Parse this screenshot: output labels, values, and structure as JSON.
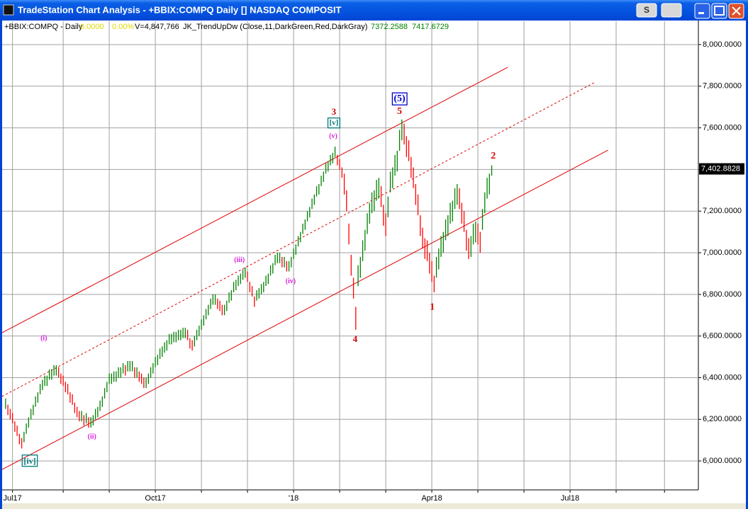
{
  "window": {
    "title": "TradeStation Chart Analysis - +BBIX:COMPQ Daily [] NASDAQ COMPOSIT",
    "button": "S"
  },
  "legend": {
    "symbol": "+BBIX:COMPQ - Daily",
    "change": "0.0000",
    "percent": "0.00%",
    "volume": "V=4,847,766",
    "indicator": "JK_TrendUpDw (Close,11,DarkGreen,Red,DarkGray)",
    "value1": "7372.2588",
    "value2": "7417.6729"
  },
  "chart_data": {
    "type": "bar",
    "high": [
      6300,
      6270,
      6250,
      6230,
      6190,
      6170,
      6130,
      6110,
      6140,
      6180,
      6210,
      6250,
      6270,
      6310,
      6330,
      6370,
      6390,
      6410,
      6410,
      6440,
      6440,
      6460,
      6460,
      6450,
      6420,
      6410,
      6380,
      6370,
      6330,
      6320,
      6280,
      6260,
      6240,
      6240,
      6220,
      6230,
      6210,
      6210,
      6220,
      6250,
      6260,
      6290,
      6310,
      6350,
      6380,
      6420,
      6420,
      6430,
      6430,
      6450,
      6450,
      6470,
      6460,
      6480,
      6480,
      6480,
      6450,
      6450,
      6430,
      6420,
      6400,
      6400,
      6420,
      6450,
      6470,
      6500,
      6510,
      6540,
      6550,
      6570,
      6580,
      6610,
      6610,
      6620,
      6620,
      6630,
      6630,
      6640,
      6640,
      6630,
      6590,
      6580,
      6600,
      6630,
      6650,
      6680,
      6700,
      6730,
      6750,
      6780,
      6800,
      6800,
      6780,
      6770,
      6750,
      6750,
      6770,
      6810,
      6820,
      6860,
      6870,
      6890,
      6900,
      6920,
      6930,
      6910,
      6860,
      6840,
      6790,
      6820,
      6830,
      6850,
      6860,
      6890,
      6900,
      6940,
      6950,
      6990,
      7000,
      7000,
      6980,
      6980,
      6960,
      6960,
      6980,
      7020,
      7040,
      7080,
      7100,
      7140,
      7160,
      7200,
      7220,
      7260,
      7280,
      7320,
      7330,
      7370,
      7390,
      7430,
      7440,
      7470,
      7480,
      7510,
      7470,
      7450,
      7410,
      7380,
      7300,
      7140,
      6990,
      6880,
      6740,
      6940,
      6980,
      7060,
      7110,
      7190,
      7240,
      7290,
      7300,
      7350,
      7360,
      7320,
      7230,
      7190,
      7270,
      7390,
      7410,
      7470,
      7490,
      7590,
      7640,
      7620,
      7560,
      7540,
      7460,
      7410,
      7330,
      7280,
      7180,
      7120,
      7070,
      7060,
      7000,
      6960,
      6890,
      6980,
      7020,
      7080,
      7100,
      7160,
      7180,
      7240,
      7250,
      7310,
      7330,
      7310,
      7240,
      7200,
      7110,
      7070,
      7080,
      7140,
      7150,
      7140,
      7100,
      7210,
      7290,
      7360,
      7380,
      7420
    ],
    "low": [
      6250,
      6220,
      6200,
      6180,
      6140,
      6120,
      6080,
      6060,
      6090,
      6130,
      6160,
      6200,
      6220,
      6260,
      6280,
      6320,
      6340,
      6360,
      6360,
      6390,
      6390,
      6410,
      6410,
      6400,
      6370,
      6360,
      6330,
      6320,
      6280,
      6270,
      6230,
      6210,
      6190,
      6190,
      6170,
      6180,
      6160,
      6160,
      6170,
      6200,
      6210,
      6240,
      6260,
      6300,
      6330,
      6370,
      6370,
      6380,
      6380,
      6400,
      6400,
      6420,
      6410,
      6430,
      6430,
      6430,
      6400,
      6400,
      6380,
      6370,
      6350,
      6350,
      6370,
      6400,
      6420,
      6450,
      6460,
      6490,
      6500,
      6520,
      6530,
      6560,
      6560,
      6570,
      6570,
      6580,
      6580,
      6590,
      6590,
      6580,
      6540,
      6530,
      6550,
      6580,
      6600,
      6630,
      6650,
      6680,
      6700,
      6730,
      6750,
      6750,
      6730,
      6720,
      6700,
      6700,
      6720,
      6760,
      6770,
      6810,
      6820,
      6840,
      6850,
      6870,
      6880,
      6860,
      6810,
      6790,
      6740,
      6770,
      6780,
      6800,
      6810,
      6840,
      6850,
      6890,
      6900,
      6940,
      6950,
      6950,
      6930,
      6930,
      6910,
      6910,
      6930,
      6970,
      6990,
      7030,
      7050,
      7090,
      7110,
      7150,
      7170,
      7210,
      7230,
      7270,
      7280,
      7320,
      7340,
      7380,
      7390,
      7420,
      7430,
      7460,
      7420,
      7400,
      7360,
      7280,
      7200,
      7040,
      6890,
      6780,
      6630,
      6840,
      6880,
      6960,
      7010,
      7090,
      7140,
      7190,
      7200,
      7250,
      7260,
      7220,
      7130,
      7080,
      7170,
      7290,
      7310,
      7370,
      7390,
      7490,
      7540,
      7520,
      7460,
      7440,
      7360,
      7310,
      7230,
      7180,
      7080,
      7020,
      6970,
      6960,
      6900,
      6860,
      6810,
      6880,
      6920,
      6980,
      7000,
      7060,
      7080,
      7140,
      7150,
      7210,
      7230,
      7210,
      7140,
      7100,
      7010,
      6970,
      6980,
      7040,
      7050,
      7040,
      7000,
      7110,
      7190,
      7260,
      7280,
      7370
    ],
    "up_color": "#008000",
    "down_color": "#ff0000",
    "xlim": [
      -1.5,
      300.7
    ],
    "xticks": [
      {
        "value": 3,
        "label": "Jul17"
      },
      {
        "value": 65,
        "label": "Oct17"
      },
      {
        "value": 125,
        "label": "'18"
      },
      {
        "value": 185,
        "label": "Apr18"
      },
      {
        "value": 245,
        "label": "Jul18"
      }
    ],
    "xgrid": [
      25,
      45,
      85,
      105,
      145,
      165,
      205,
      225,
      265,
      286
    ],
    "ylim": [
      5861,
      8112
    ],
    "yticks": [
      {
        "value": 6000,
        "label": "6,000.0000"
      },
      {
        "value": 6200,
        "label": "6,200.0000"
      },
      {
        "value": 6400,
        "label": "6,400.0000"
      },
      {
        "value": 6600,
        "label": "6,600.0000"
      },
      {
        "value": 6800,
        "label": "6,800.0000"
      },
      {
        "value": 7000,
        "label": "7,000.0000"
      },
      {
        "value": 7200,
        "label": "7,200.0000"
      },
      {
        "value": 7400,
        "label": "7,400.0000"
      },
      {
        "value": 7600,
        "label": "7,600.0000"
      },
      {
        "value": 7800,
        "label": "7,800.0000"
      },
      {
        "value": 8000,
        "label": "8,000.0000"
      }
    ],
    "grid": true,
    "last": {
      "value": 7402.8828,
      "label": "7,402.8828"
    },
    "channel": [
      {
        "x": [
          -1.5,
          218
        ],
        "y": [
          6616,
          7891
        ],
        "dashed": false
      },
      {
        "x": [
          -1.5,
          256
        ],
        "y": [
          6310,
          7820
        ],
        "dashed": true
      },
      {
        "x": [
          -1.5,
          261.5
        ],
        "y": [
          5959,
          7493
        ],
        "dashed": false
      }
    ],
    "channel_color": "#e00000",
    "annotations": [
      {
        "label": "(i)",
        "x": 16.6,
        "y": 6588,
        "color": "#dd22dd",
        "size": 10,
        "box": false
      },
      {
        "label": "(ii)",
        "x": 37.5,
        "y": 6116,
        "color": "#dd22dd",
        "size": 10,
        "box": false
      },
      {
        "label": "(iii)",
        "x": 101.5,
        "y": 6963,
        "color": "#dd22dd",
        "size": 10,
        "box": false
      },
      {
        "label": "(iv)",
        "x": 123.7,
        "y": 6861,
        "color": "#dd22dd",
        "size": 10,
        "box": false
      },
      {
        "label": "(v)",
        "x": 142.2,
        "y": 7558,
        "color": "#dd22dd",
        "size": 10,
        "box": false
      },
      {
        "label": "[iv]",
        "x": 10.5,
        "y": 5997,
        "color": "#007b7b",
        "size": 12,
        "box": true
      },
      {
        "label": "[v]",
        "x": 142.5,
        "y": 7622,
        "color": "#007b7b",
        "size": 11,
        "box": true
      },
      {
        "label": "3",
        "x": 142.5,
        "y": 7673,
        "color": "#cc0000",
        "size": 13,
        "box": false
      },
      {
        "label": "4",
        "x": 151.7,
        "y": 6582,
        "color": "#cc0000",
        "size": 13,
        "box": false
      },
      {
        "label": "5",
        "x": 171,
        "y": 7677,
        "color": "#dd0000",
        "size": 14,
        "box": false
      },
      {
        "label": "(5)",
        "x": 171,
        "y": 7738,
        "color": "#0000cc",
        "size": 14,
        "box": true
      },
      {
        "label": "1",
        "x": 185.2,
        "y": 6738,
        "color": "#dd0000",
        "size": 14,
        "box": false
      },
      {
        "label": "2",
        "x": 211.7,
        "y": 7463,
        "color": "#dd0000",
        "size": 14,
        "box": false
      }
    ]
  }
}
